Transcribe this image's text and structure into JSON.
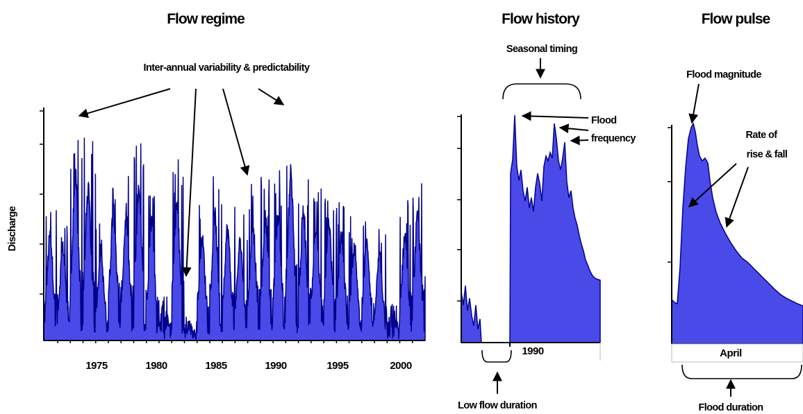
{
  "titles": {
    "regime": "Flow regime",
    "history": "Flow history",
    "pulse": "Flow pulse"
  },
  "labels": {
    "interannual": "Inter-annual variability & predictability",
    "seasonal": "Seasonal timing",
    "flood_frequency_1": "Flood",
    "flood_frequency_2": "frequency",
    "low_flow": "Low flow duration",
    "flood_magnitude": "Flood magnitude",
    "rate_1": "Rate of",
    "rate_2": "rise & fall",
    "flood_duration": "Flood duration",
    "ylabel": "Discharge"
  },
  "colors": {
    "fill": "#4a4ae8",
    "line": "#00008b"
  },
  "chart_data": [
    {
      "type": "area",
      "title": "Flow regime",
      "ylabel": "Discharge",
      "y_scale": "log",
      "xlim": [
        1970.9,
        2001.0
      ],
      "x_ticks": [
        "1975",
        "1980",
        "1985",
        "1990",
        "1995",
        "2000"
      ],
      "x_tick_values": [
        1975,
        1980,
        1985,
        1990,
        1995,
        2000
      ],
      "annual_peak_level": [
        [
          1971,
          0.62
        ],
        [
          1972,
          0.55
        ],
        [
          1973,
          0.95
        ],
        [
          1974,
          0.88
        ],
        [
          1975,
          0.52
        ],
        [
          1976,
          0.78
        ],
        [
          1977,
          0.72
        ],
        [
          1978,
          0.86
        ],
        [
          1979,
          0.7
        ],
        [
          1980,
          0.25
        ],
        [
          1981,
          0.8
        ],
        [
          1982,
          0.12
        ],
        [
          1983,
          0.6
        ],
        [
          1984,
          0.74
        ],
        [
          1985,
          0.66
        ],
        [
          1986,
          0.58
        ],
        [
          1987,
          0.7
        ],
        [
          1988,
          0.72
        ],
        [
          1989,
          0.74
        ],
        [
          1990,
          0.98
        ],
        [
          1991,
          0.76
        ],
        [
          1992,
          0.68
        ],
        [
          1993,
          0.7
        ],
        [
          1994,
          0.62
        ],
        [
          1995,
          0.54
        ],
        [
          1996,
          0.58
        ],
        [
          1997,
          0.5
        ],
        [
          1998,
          0.22
        ],
        [
          1999,
          0.62
        ],
        [
          2000,
          0.72
        ],
        [
          2001,
          0.95
        ]
      ]
    },
    {
      "type": "area",
      "title": "Flow history",
      "y_scale": "log",
      "x_ticks": [
        "1990"
      ]
    },
    {
      "type": "area",
      "title": "Flow pulse",
      "y_scale": "log",
      "x_ticks": [
        "April"
      ]
    }
  ]
}
